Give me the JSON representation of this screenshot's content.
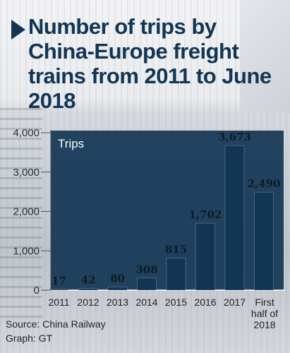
{
  "title": "Number of trips by China-Europe freight trains from 2011 to June 2018",
  "chart_data": {
    "type": "bar",
    "categories": [
      "2011",
      "2012",
      "2013",
      "2014",
      "2015",
      "2016",
      "2017",
      [
        "First",
        "half of",
        "2018"
      ]
    ],
    "series": [
      {
        "name": "Trips",
        "values": [
          17,
          42,
          80,
          308,
          815,
          1702,
          3673,
          2490
        ]
      }
    ],
    "value_labels": [
      "17",
      "42",
      "80",
      "308",
      "815",
      "1,702",
      "3,673",
      "2,490"
    ],
    "y_ticks": [
      "0",
      "1,000",
      "2,000",
      "3,000",
      "4,000"
    ],
    "y_tick_values": [
      0,
      1000,
      2000,
      3000,
      4000
    ],
    "ylim": [
      0,
      4000
    ],
    "grid": false,
    "legend_text": "Trips",
    "bar_color": "#123554",
    "panel_color": "#123554"
  },
  "source_text": "Source: China Railway",
  "graph_text": "Graph: GT"
}
